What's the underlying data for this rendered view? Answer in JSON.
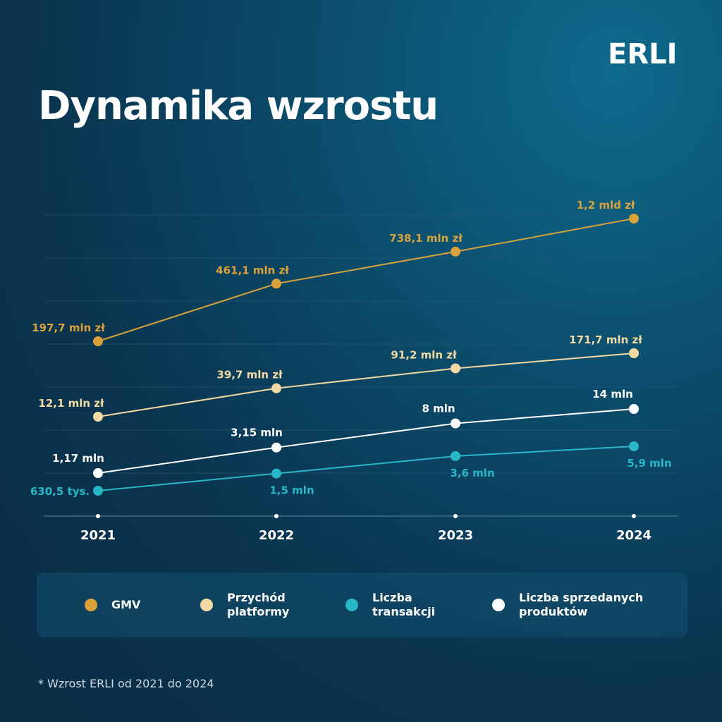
{
  "header": {
    "logo_text": "ERLI",
    "title": "Dynamika wzrostu"
  },
  "colors": {
    "gmv": "#d9a23a",
    "revenue": "#f3d9a3",
    "transactions": "#27b7c9",
    "products": "#ffffff",
    "grid": "#2a5a74"
  },
  "chart_data": {
    "type": "line",
    "title": "Dynamika wzrostu",
    "categories": [
      "2021",
      "2022",
      "2023",
      "2024"
    ],
    "grid": true,
    "legend_position": "bottom",
    "series": [
      {
        "key": "gmv",
        "name": "GMV",
        "values": [
          197.7,
          461.1,
          738.1,
          1200
        ],
        "unit": "mln zł",
        "labels": [
          "197,7 mln zł",
          "461,1 mln zł",
          "738,1 mln zł",
          "1,2 mld zł"
        ]
      },
      {
        "key": "revenue",
        "name": "Przychód platformy",
        "values": [
          12.1,
          39.7,
          91.2,
          171.7
        ],
        "unit": "mln zł",
        "labels": [
          "12,1 mln zł",
          "39,7 mln zł",
          "91,2 mln zł",
          "171,7 mln zł"
        ]
      },
      {
        "key": "products",
        "name": "Liczba sprzedanych produktów",
        "values": [
          1.17,
          3.15,
          8,
          14
        ],
        "unit": "mln",
        "labels": [
          "1,17 mln",
          "3,15 mln",
          "8 mln",
          "14 mln"
        ]
      },
      {
        "key": "transactions",
        "name": "Liczba transakcji",
        "values": [
          0.6305,
          1.5,
          3.6,
          5.9
        ],
        "unit": "mln",
        "labels": [
          "630,5 tys.",
          "1,5 mln",
          "3,6 mln",
          "5,9 mln"
        ]
      }
    ]
  },
  "legend": [
    {
      "line1": "GMV",
      "line2": ""
    },
    {
      "line1": "Przychód",
      "line2": "platformy"
    },
    {
      "line1": "Liczba",
      "line2": "transakcji"
    },
    {
      "line1": "Liczba sprzedanych",
      "line2": "produktów"
    }
  ],
  "footnote": "* Wzrost ERLI od 2021 do 2024"
}
